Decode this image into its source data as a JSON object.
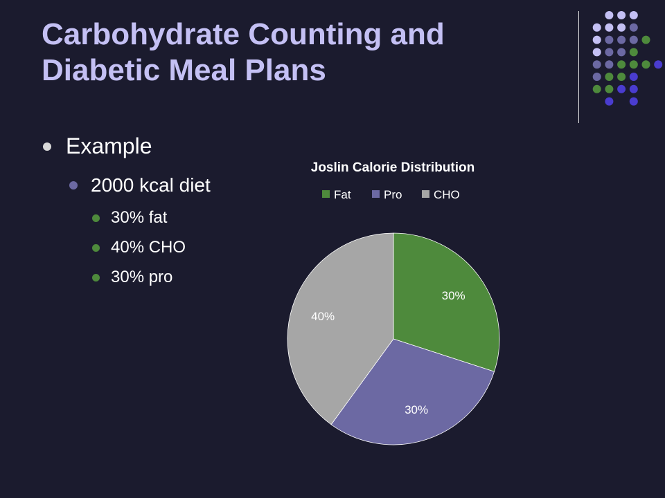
{
  "slide": {
    "title_line1": "Carbohydrate Counting and",
    "title_line2": "Diabetic Meal Plans"
  },
  "bullets": {
    "level1": "Example",
    "level2": "2000 kcal diet",
    "level3": [
      "30% fat",
      "40% CHO",
      "30% pro"
    ]
  },
  "colors": {
    "background": "#1b1b2e",
    "title": "#c4c0f4",
    "accent_green": "#4e8a3c",
    "accent_purple": "#6c69a3",
    "accent_blue": "#4a3ccf",
    "accent_lavender": "#c4c0f4"
  },
  "chart_data": {
    "type": "pie",
    "title": "Joslin Calorie Distribution",
    "categories": [
      "Fat",
      "Pro",
      "CHO"
    ],
    "values": [
      30,
      30,
      40
    ],
    "data_labels": [
      "30%",
      "30%",
      "40%"
    ],
    "colors": [
      "#4e8a3c",
      "#6c69a3",
      "#a6a6a6"
    ],
    "legend_position": "top"
  }
}
